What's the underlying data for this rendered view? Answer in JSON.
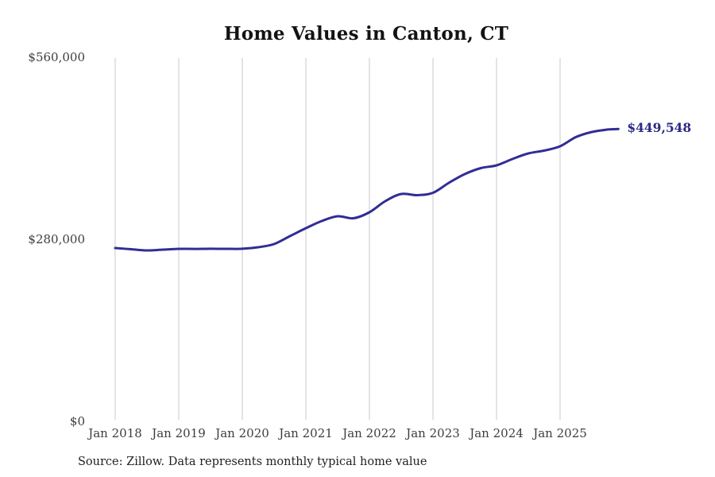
{
  "title": "Home Values in Canton, CT",
  "source_note": "Source: Zillow. Data represents monthly typical home value",
  "chart_data": {
    "type": "line",
    "title": "Home Values in Canton, CT",
    "series_name": "Monthly typical home value",
    "xlabel": "",
    "ylabel": "",
    "ylim": [
      0,
      560000
    ],
    "xlim": [
      "2018-01",
      "2025-12"
    ],
    "grid": "vertical-only",
    "legend": "none",
    "line_color": "#312d94",
    "end_label_color": "#2b2884",
    "grid_color": "#c9c9c9",
    "axis_text_color": "#3d3d3d",
    "end_label": "$449,548",
    "end_value": 449548,
    "y_ticks": [
      {
        "value": 560000,
        "label": "$560,000"
      },
      {
        "value": 280000,
        "label": "$280,000"
      },
      {
        "value": 0,
        "label": "$0"
      }
    ],
    "x_ticks": [
      {
        "date": "2018-01",
        "label": "Jan 2018"
      },
      {
        "date": "2019-01",
        "label": "Jan 2019"
      },
      {
        "date": "2020-01",
        "label": "Jan 2020"
      },
      {
        "date": "2021-01",
        "label": "Jan 2021"
      },
      {
        "date": "2022-01",
        "label": "Jan 2022"
      },
      {
        "date": "2023-01",
        "label": "Jan 2023"
      },
      {
        "date": "2024-01",
        "label": "Jan 2024"
      },
      {
        "date": "2025-01",
        "label": "Jan 2025"
      }
    ],
    "points": [
      [
        "2018-01",
        266600
      ],
      [
        "2018-04",
        264700
      ],
      [
        "2018-07",
        262900
      ],
      [
        "2018-10",
        264100
      ],
      [
        "2019-01",
        265300
      ],
      [
        "2019-04",
        265200
      ],
      [
        "2019-07",
        265400
      ],
      [
        "2019-10",
        265300
      ],
      [
        "2020-01",
        265400
      ],
      [
        "2020-04",
        267800
      ],
      [
        "2020-07",
        272700
      ],
      [
        "2020-10",
        284900
      ],
      [
        "2021-01",
        297100
      ],
      [
        "2021-04",
        308100
      ],
      [
        "2021-07",
        315500
      ],
      [
        "2021-10",
        312400
      ],
      [
        "2022-01",
        321600
      ],
      [
        "2022-04",
        338700
      ],
      [
        "2022-07",
        349700
      ],
      [
        "2022-10",
        347900
      ],
      [
        "2023-01",
        351500
      ],
      [
        "2023-04",
        366800
      ],
      [
        "2023-07",
        380300
      ],
      [
        "2023-10",
        389400
      ],
      [
        "2024-01",
        393700
      ],
      [
        "2024-04",
        403500
      ],
      [
        "2024-07",
        412100
      ],
      [
        "2024-10",
        416400
      ],
      [
        "2025-01",
        423100
      ],
      [
        "2025-04",
        437200
      ],
      [
        "2025-07",
        445100
      ],
      [
        "2025-10",
        448800
      ],
      [
        "2025-12",
        449548
      ]
    ]
  }
}
